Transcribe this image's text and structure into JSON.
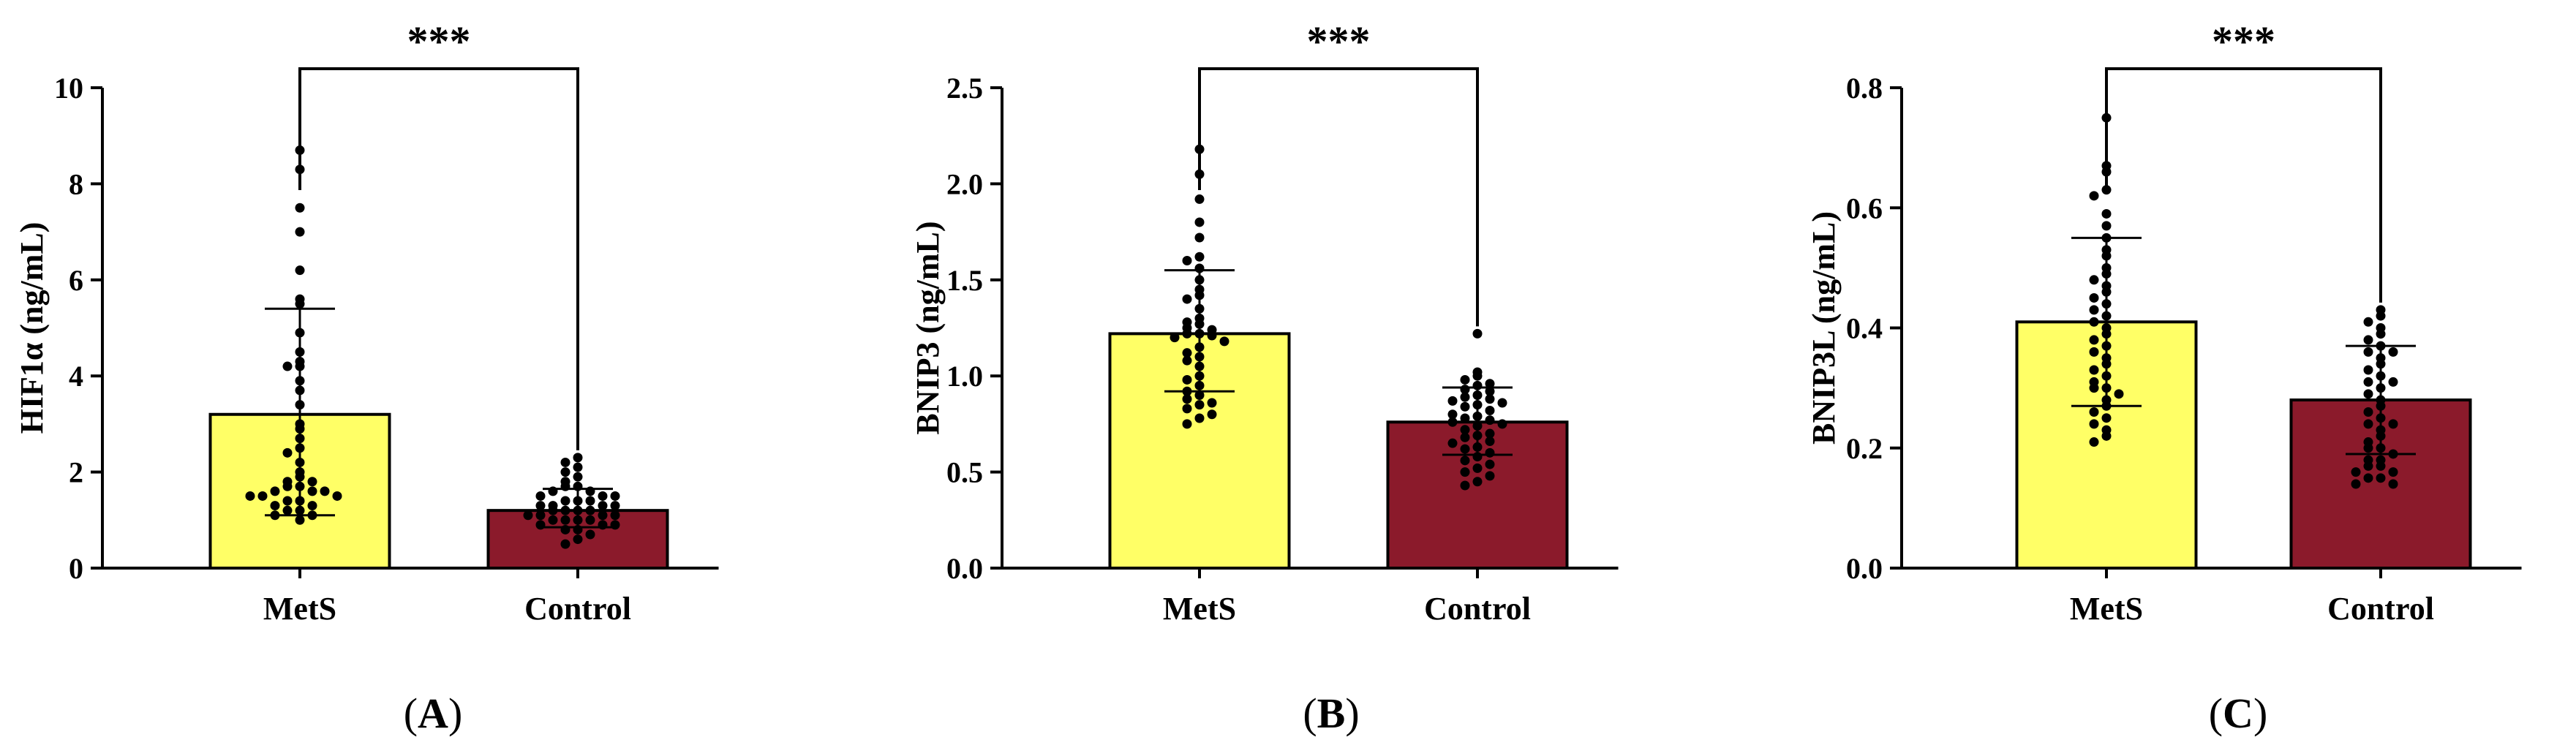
{
  "figure": {
    "colors": {
      "mets": "#ffff66",
      "control": "#8b1a2b",
      "axis": "#000000",
      "dot": "#000000"
    }
  },
  "chart_data": [
    {
      "type": "bar",
      "panel_label": "(A)",
      "panel_letter": "A",
      "ylabel": "HIF1α (ng/mL)",
      "categories": [
        "MetS",
        "Control"
      ],
      "values": [
        3.2,
        1.2
      ],
      "sd_upper": [
        5.4,
        1.65
      ],
      "sd_lower": [
        1.1,
        0.85
      ],
      "ylim": [
        0,
        10
      ],
      "yticks": [
        0,
        2,
        4,
        6,
        8,
        10
      ],
      "ytick_labels": [
        "0",
        "2",
        "4",
        "6",
        "8",
        "10"
      ],
      "significance": "***",
      "points": [
        [
          8.7,
          8.3,
          7.5,
          7.0,
          6.2,
          5.6,
          5.5,
          4.9,
          4.5,
          4.3,
          4.2,
          4.2,
          3.9,
          3.7,
          3.4,
          3.0,
          2.9,
          2.7,
          2.5,
          2.4,
          2.2,
          2.0,
          1.9,
          1.8,
          1.8,
          1.7,
          1.7,
          1.6,
          1.6,
          1.6,
          1.5,
          1.5,
          1.5,
          1.4,
          1.4,
          1.3,
          1.3,
          1.2,
          1.2,
          1.1,
          1.1,
          1.0
        ],
        [
          2.3,
          2.2,
          2.1,
          2.0,
          1.9,
          1.8,
          1.7,
          1.7,
          1.6,
          1.6,
          1.5,
          1.5,
          1.5,
          1.4,
          1.4,
          1.4,
          1.3,
          1.3,
          1.3,
          1.3,
          1.2,
          1.2,
          1.2,
          1.2,
          1.1,
          1.1,
          1.1,
          1.1,
          1.0,
          1.0,
          1.0,
          1.0,
          0.9,
          0.9,
          0.9,
          0.8,
          0.8,
          0.7,
          0.6,
          0.5
        ]
      ]
    },
    {
      "type": "bar",
      "panel_label": "(B)",
      "panel_letter": "B",
      "ylabel": "BNIP3 (ng/mL)",
      "categories": [
        "MetS",
        "Control"
      ],
      "values": [
        1.22,
        0.76
      ],
      "sd_upper": [
        1.55,
        0.94
      ],
      "sd_lower": [
        0.92,
        0.59
      ],
      "ylim": [
        0,
        2.5
      ],
      "yticks": [
        0,
        0.5,
        1.0,
        1.5,
        2.0,
        2.5
      ],
      "ytick_labels": [
        "0.0",
        "0.5",
        "1.0",
        "1.5",
        "2.0",
        "2.5"
      ],
      "significance": "***",
      "points": [
        [
          2.18,
          2.05,
          1.92,
          1.8,
          1.72,
          1.62,
          1.6,
          1.56,
          1.5,
          1.45,
          1.42,
          1.4,
          1.35,
          1.3,
          1.28,
          1.27,
          1.25,
          1.24,
          1.22,
          1.22,
          1.21,
          1.2,
          1.18,
          1.15,
          1.12,
          1.1,
          1.08,
          1.05,
          1.0,
          0.98,
          0.95,
          0.92,
          0.9,
          0.88,
          0.86,
          0.85,
          0.83,
          0.8,
          0.78,
          0.75
        ],
        [
          1.22,
          1.02,
          1.0,
          0.98,
          0.96,
          0.95,
          0.93,
          0.92,
          0.9,
          0.89,
          0.88,
          0.87,
          0.86,
          0.85,
          0.84,
          0.82,
          0.8,
          0.79,
          0.78,
          0.77,
          0.76,
          0.75,
          0.74,
          0.72,
          0.7,
          0.69,
          0.68,
          0.66,
          0.65,
          0.63,
          0.62,
          0.6,
          0.58,
          0.56,
          0.54,
          0.52,
          0.5,
          0.48,
          0.45,
          0.43
        ]
      ]
    },
    {
      "type": "bar",
      "panel_label": "(C)",
      "panel_letter": "C",
      "ylabel": "BNIP3L (ng/mL)",
      "categories": [
        "MetS",
        "Control"
      ],
      "values": [
        0.41,
        0.28
      ],
      "sd_upper": [
        0.55,
        0.37
      ],
      "sd_lower": [
        0.27,
        0.19
      ],
      "ylim": [
        0,
        0.8
      ],
      "yticks": [
        0,
        0.2,
        0.4,
        0.6,
        0.8
      ],
      "ytick_labels": [
        "0.0",
        "0.2",
        "0.4",
        "0.6",
        "0.8"
      ],
      "significance": "***",
      "points": [
        [
          0.75,
          0.67,
          0.66,
          0.63,
          0.62,
          0.59,
          0.57,
          0.55,
          0.53,
          0.52,
          0.5,
          0.49,
          0.48,
          0.47,
          0.46,
          0.45,
          0.44,
          0.43,
          0.42,
          0.41,
          0.4,
          0.39,
          0.38,
          0.37,
          0.36,
          0.35,
          0.34,
          0.33,
          0.32,
          0.31,
          0.3,
          0.3,
          0.29,
          0.28,
          0.27,
          0.26,
          0.25,
          0.24,
          0.23,
          0.22,
          0.21
        ],
        [
          0.43,
          0.42,
          0.41,
          0.4,
          0.39,
          0.38,
          0.37,
          0.36,
          0.36,
          0.35,
          0.34,
          0.33,
          0.32,
          0.31,
          0.31,
          0.3,
          0.29,
          0.28,
          0.27,
          0.26,
          0.25,
          0.24,
          0.24,
          0.23,
          0.22,
          0.21,
          0.2,
          0.2,
          0.19,
          0.18,
          0.18,
          0.17,
          0.17,
          0.16,
          0.16,
          0.15,
          0.15,
          0.14,
          0.14
        ]
      ]
    }
  ]
}
